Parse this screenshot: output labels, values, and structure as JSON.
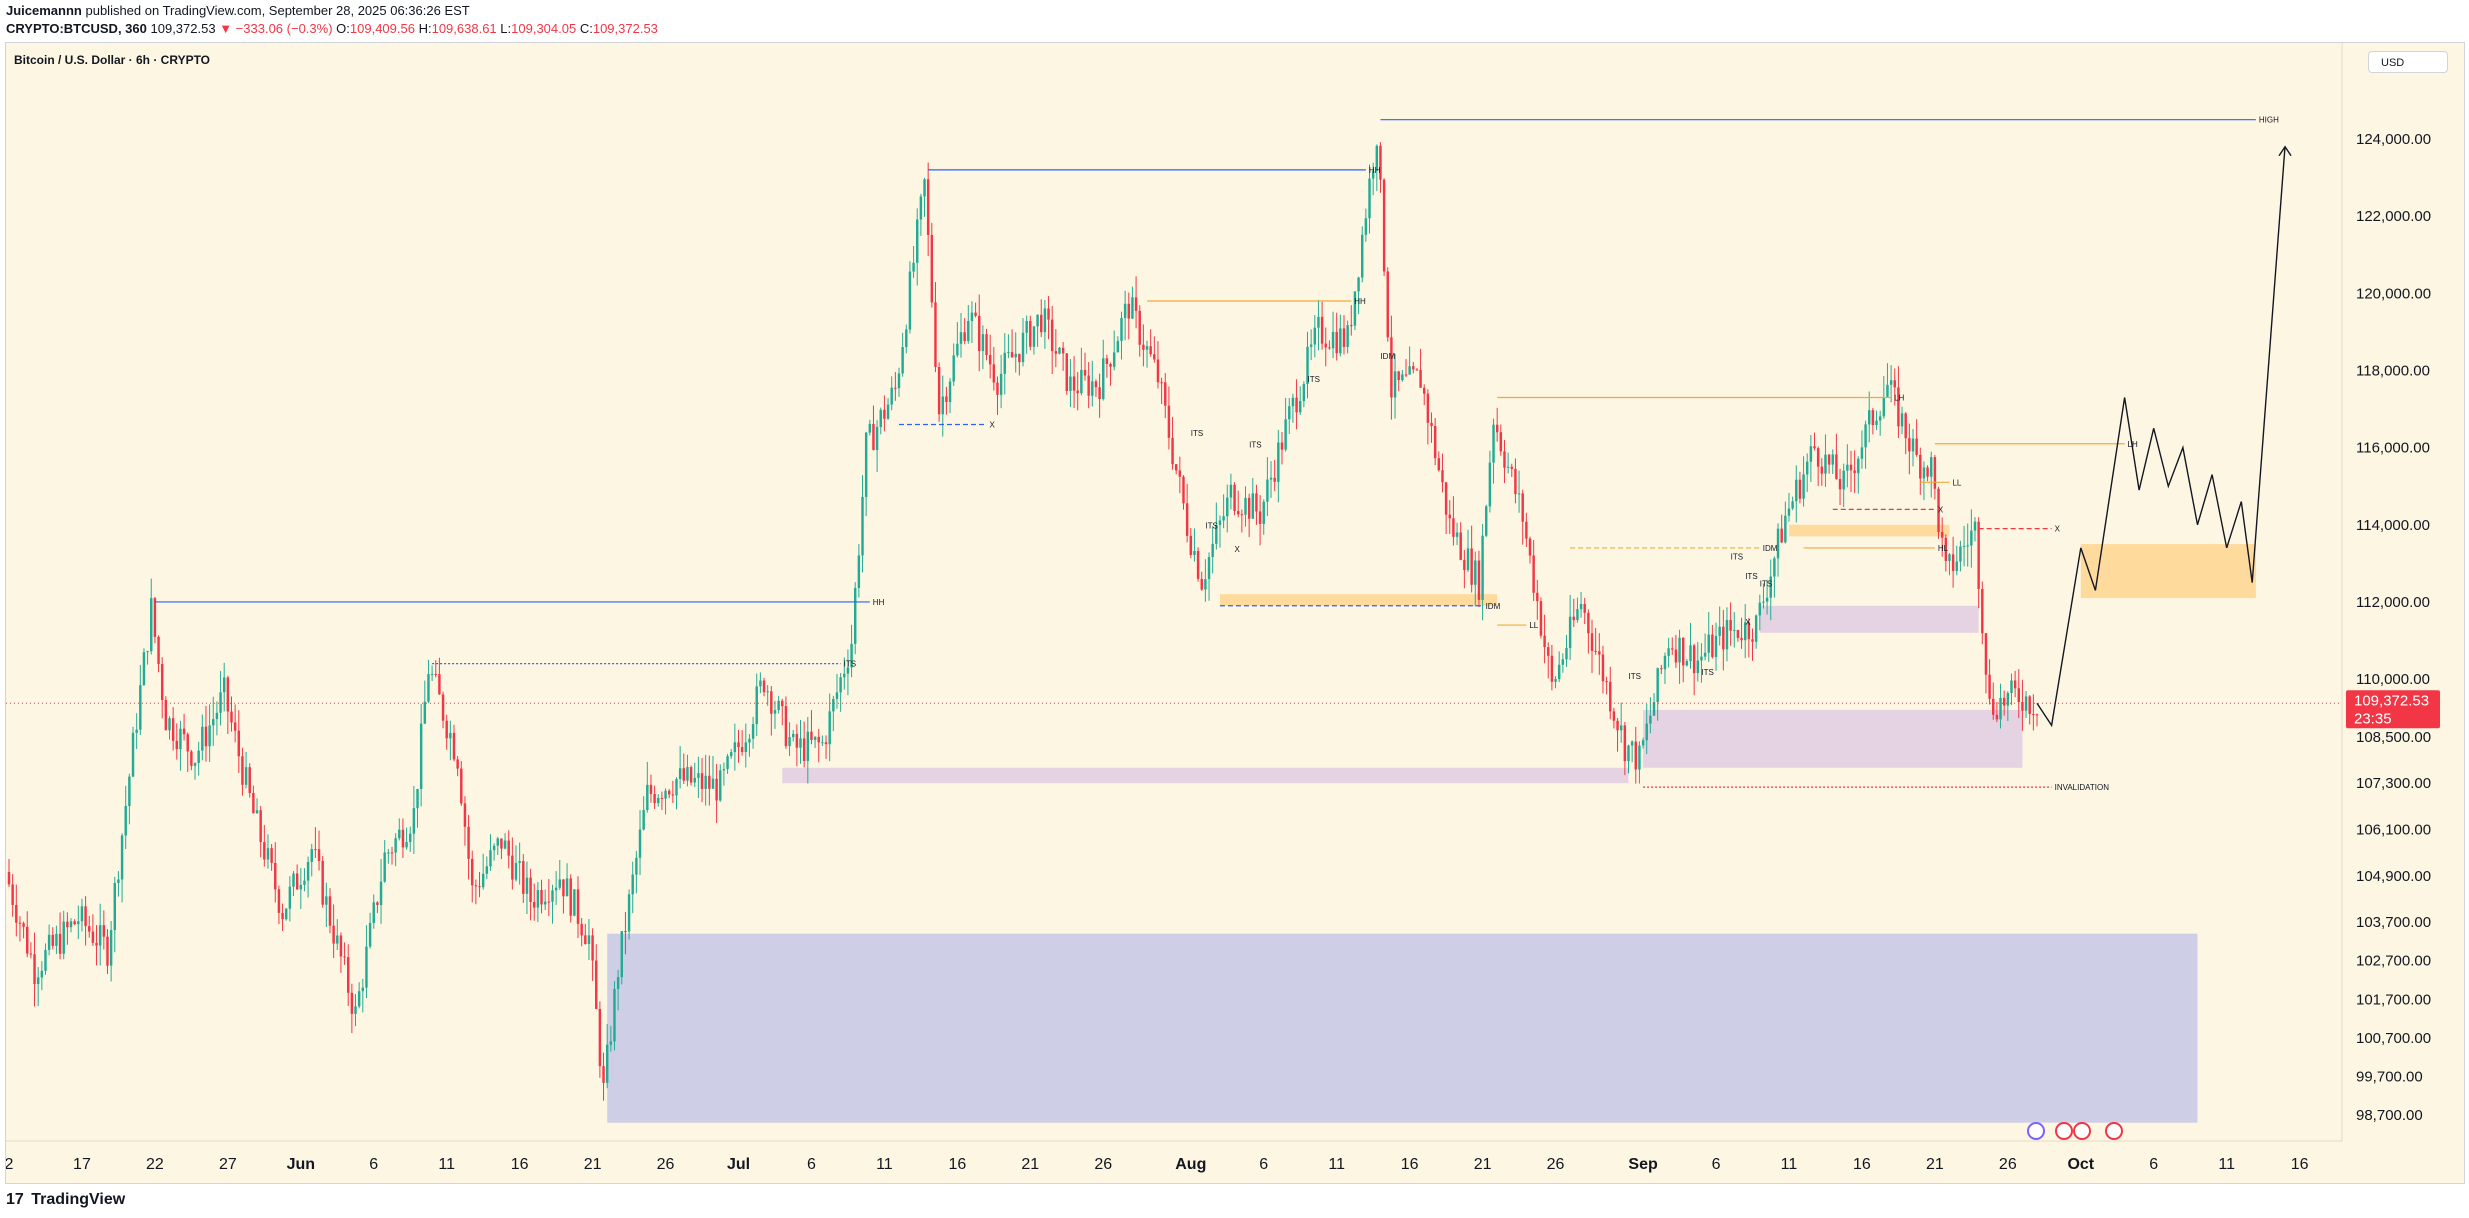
{
  "header": {
    "publisher": "Juicemannn",
    "published_text": "published on TradingView.com, September 28, 2025 06:36:26 EST",
    "symbol": "CRYPTO:BTCUSD, 360",
    "last": "109,372.53",
    "change": "▼ −333.06 (−0.3%)",
    "o_label": "O:",
    "o_value": "109,409.56",
    "h_label": "H:",
    "h_value": "109,638.61",
    "l_label": "L:",
    "l_value": "109,304.05",
    "c_label": "C:",
    "c_value": "109,372.53"
  },
  "currency_button": "USD",
  "footer": {
    "logo_mark": "17",
    "logo_text": "TradingView"
  },
  "colors": {
    "background": "#fdf6e3",
    "up": "#22ab94",
    "down": "#f23645",
    "hh_line": "#2962ff",
    "swing_line": "#f2a93b",
    "demand_zone": "#c5c8e8",
    "ob_zone": "#e1cde3",
    "target_zone": "#ffd591",
    "price_badge": "#f23645"
  },
  "chart_data": {
    "type": "candlestick",
    "title": "Bitcoin / U.S. Dollar · 6h · CRYPTO",
    "ylim": [
      98000,
      125500
    ],
    "y_ticks": [
      {
        "value": 124000,
        "label": "124,000.00"
      },
      {
        "value": 122000,
        "label": "122,000.00"
      },
      {
        "value": 120000,
        "label": "120,000.00"
      },
      {
        "value": 118000,
        "label": "118,000.00"
      },
      {
        "value": 116000,
        "label": "116,000.00"
      },
      {
        "value": 114000,
        "label": "114,000.00"
      },
      {
        "value": 112000,
        "label": "112,000.00"
      },
      {
        "value": 110000,
        "label": "110,000.00"
      },
      {
        "value": 108500,
        "label": "108,500.00"
      },
      {
        "value": 107300,
        "label": "107,300.00"
      },
      {
        "value": 106100,
        "label": "106,100.00"
      },
      {
        "value": 104900,
        "label": "104,900.00"
      },
      {
        "value": 103700,
        "label": "103,700.00"
      },
      {
        "value": 102700,
        "label": "102,700.00"
      },
      {
        "value": 101700,
        "label": "101,700.00"
      },
      {
        "value": 100700,
        "label": "100,700.00"
      },
      {
        "value": 99700,
        "label": "99,700.00"
      },
      {
        "value": 98700,
        "label": "98,700.00"
      }
    ],
    "x_ticks": [
      {
        "date": "2025-05-12",
        "label": "2",
        "bold": false
      },
      {
        "date": "2025-05-17",
        "label": "17",
        "bold": false
      },
      {
        "date": "2025-05-22",
        "label": "22",
        "bold": false
      },
      {
        "date": "2025-05-27",
        "label": "27",
        "bold": false
      },
      {
        "date": "2025-06-01",
        "label": "Jun",
        "bold": true
      },
      {
        "date": "2025-06-06",
        "label": "6",
        "bold": false
      },
      {
        "date": "2025-06-11",
        "label": "11",
        "bold": false
      },
      {
        "date": "2025-06-16",
        "label": "16",
        "bold": false
      },
      {
        "date": "2025-06-21",
        "label": "21",
        "bold": false
      },
      {
        "date": "2025-06-26",
        "label": "26",
        "bold": false
      },
      {
        "date": "2025-07-01",
        "label": "Jul",
        "bold": true
      },
      {
        "date": "2025-07-06",
        "label": "6",
        "bold": false
      },
      {
        "date": "2025-07-11",
        "label": "11",
        "bold": false
      },
      {
        "date": "2025-07-16",
        "label": "16",
        "bold": false
      },
      {
        "date": "2025-07-21",
        "label": "21",
        "bold": false
      },
      {
        "date": "2025-07-26",
        "label": "26",
        "bold": false
      },
      {
        "date": "2025-08-01",
        "label": "Aug",
        "bold": true
      },
      {
        "date": "2025-08-06",
        "label": "6",
        "bold": false
      },
      {
        "date": "2025-08-11",
        "label": "11",
        "bold": false
      },
      {
        "date": "2025-08-16",
        "label": "16",
        "bold": false
      },
      {
        "date": "2025-08-21",
        "label": "21",
        "bold": false
      },
      {
        "date": "2025-08-26",
        "label": "26",
        "bold": false
      },
      {
        "date": "2025-09-01",
        "label": "Sep",
        "bold": true
      },
      {
        "date": "2025-09-06",
        "label": "6",
        "bold": false
      },
      {
        "date": "2025-09-11",
        "label": "11",
        "bold": false
      },
      {
        "date": "2025-09-16",
        "label": "16",
        "bold": false
      },
      {
        "date": "2025-09-21",
        "label": "21",
        "bold": false
      },
      {
        "date": "2025-09-26",
        "label": "26",
        "bold": false
      },
      {
        "date": "2025-10-01",
        "label": "Oct",
        "bold": true
      },
      {
        "date": "2025-10-06",
        "label": "6",
        "bold": false
      },
      {
        "date": "2025-10-11",
        "label": "11",
        "bold": false
      },
      {
        "date": "2025-10-16",
        "label": "16",
        "bold": false
      }
    ],
    "price_path": [
      {
        "date": "2025-05-12",
        "price": 105000
      },
      {
        "date": "2025-05-14",
        "price": 102500
      },
      {
        "date": "2025-05-17",
        "price": 103800
      },
      {
        "date": "2025-05-19",
        "price": 103000
      },
      {
        "date": "2025-05-21",
        "price": 109000
      },
      {
        "date": "2025-05-22",
        "price": 111800
      },
      {
        "date": "2025-05-23",
        "price": 109000
      },
      {
        "date": "2025-05-25",
        "price": 108000
      },
      {
        "date": "2025-05-27",
        "price": 109600
      },
      {
        "date": "2025-05-29",
        "price": 106500
      },
      {
        "date": "2025-05-31",
        "price": 104000
      },
      {
        "date": "2025-06-02",
        "price": 105600
      },
      {
        "date": "2025-06-05",
        "price": 101300
      },
      {
        "date": "2025-06-07",
        "price": 105400
      },
      {
        "date": "2025-06-09",
        "price": 106500
      },
      {
        "date": "2025-06-10",
        "price": 110300
      },
      {
        "date": "2025-06-12",
        "price": 108000
      },
      {
        "date": "2025-06-13",
        "price": 104500
      },
      {
        "date": "2025-06-15",
        "price": 105800
      },
      {
        "date": "2025-06-17",
        "price": 104300
      },
      {
        "date": "2025-06-19",
        "price": 104900
      },
      {
        "date": "2025-06-21",
        "price": 103300
      },
      {
        "date": "2025-06-22",
        "price": 99300
      },
      {
        "date": "2025-06-23",
        "price": 102500
      },
      {
        "date": "2025-06-25",
        "price": 107000
      },
      {
        "date": "2025-06-27",
        "price": 107400
      },
      {
        "date": "2025-06-30",
        "price": 107200
      },
      {
        "date": "2025-07-02",
        "price": 108900
      },
      {
        "date": "2025-07-03",
        "price": 110000
      },
      {
        "date": "2025-07-05",
        "price": 108200
      },
      {
        "date": "2025-07-07",
        "price": 108300
      },
      {
        "date": "2025-07-09",
        "price": 111000
      },
      {
        "date": "2025-07-10",
        "price": 116000
      },
      {
        "date": "2025-07-12",
        "price": 117500
      },
      {
        "date": "2025-07-14",
        "price": 122800
      },
      {
        "date": "2025-07-15",
        "price": 117000
      },
      {
        "date": "2025-07-17",
        "price": 119500
      },
      {
        "date": "2025-07-19",
        "price": 117800
      },
      {
        "date": "2025-07-22",
        "price": 119400
      },
      {
        "date": "2025-07-24",
        "price": 117600
      },
      {
        "date": "2025-07-26",
        "price": 117700
      },
      {
        "date": "2025-07-28",
        "price": 119700
      },
      {
        "date": "2025-07-30",
        "price": 117800
      },
      {
        "date": "2025-08-01",
        "price": 114000
      },
      {
        "date": "2025-08-02",
        "price": 112600
      },
      {
        "date": "2025-08-04",
        "price": 114800
      },
      {
        "date": "2025-08-06",
        "price": 114300
      },
      {
        "date": "2025-08-08",
        "price": 116800
      },
      {
        "date": "2025-08-10",
        "price": 119000
      },
      {
        "date": "2025-08-12",
        "price": 118800
      },
      {
        "date": "2025-08-14",
        "price": 124200
      },
      {
        "date": "2025-08-15",
        "price": 117500
      },
      {
        "date": "2025-08-17",
        "price": 117800
      },
      {
        "date": "2025-08-19",
        "price": 114000
      },
      {
        "date": "2025-08-21",
        "price": 112500
      },
      {
        "date": "2025-08-22",
        "price": 116800
      },
      {
        "date": "2025-08-24",
        "price": 114200
      },
      {
        "date": "2025-08-26",
        "price": 109800
      },
      {
        "date": "2025-08-28",
        "price": 112000
      },
      {
        "date": "2025-08-31",
        "price": 108300
      },
      {
        "date": "2025-09-01",
        "price": 107900
      },
      {
        "date": "2025-09-03",
        "price": 111000
      },
      {
        "date": "2025-09-05",
        "price": 110500
      },
      {
        "date": "2025-09-07",
        "price": 111200
      },
      {
        "date": "2025-09-09",
        "price": 111400
      },
      {
        "date": "2025-09-11",
        "price": 114200
      },
      {
        "date": "2025-09-13",
        "price": 116000
      },
      {
        "date": "2025-09-15",
        "price": 115000
      },
      {
        "date": "2025-09-17",
        "price": 116800
      },
      {
        "date": "2025-09-18",
        "price": 117600
      },
      {
        "date": "2025-09-20",
        "price": 115700
      },
      {
        "date": "2025-09-21",
        "price": 115500
      },
      {
        "date": "2025-09-22",
        "price": 112700
      },
      {
        "date": "2025-09-24",
        "price": 113900
      },
      {
        "date": "2025-09-25",
        "price": 109300
      },
      {
        "date": "2025-09-27",
        "price": 109600
      },
      {
        "date": "2025-09-28",
        "price": 109372.53
      }
    ],
    "projection_path": [
      {
        "date": "2025-09-29",
        "price": 108800
      },
      {
        "date": "2025-10-01",
        "price": 113400
      },
      {
        "date": "2025-10-02",
        "price": 112300
      },
      {
        "date": "2025-10-04",
        "price": 117300
      },
      {
        "date": "2025-10-05",
        "price": 114900
      },
      {
        "date": "2025-10-06",
        "price": 116500
      },
      {
        "date": "2025-10-07",
        "price": 115000
      },
      {
        "date": "2025-10-08",
        "price": 116000
      },
      {
        "date": "2025-10-09",
        "price": 114000
      },
      {
        "date": "2025-10-10",
        "price": 115300
      },
      {
        "date": "2025-10-11",
        "price": 113400
      },
      {
        "date": "2025-10-12",
        "price": 114600
      },
      {
        "date": "2025-10-12T18:00",
        "price": 112500
      },
      {
        "date": "2025-10-15",
        "price": 123800
      }
    ],
    "zones": [
      {
        "name": "demand-zone",
        "x_start": "2025-06-22",
        "x_end": "2025-10-09",
        "y_low": 98500,
        "y_high": 103400,
        "color": "#c5c8e8"
      },
      {
        "name": "ob-zone-july",
        "x_start": "2025-07-04",
        "x_end": "2025-08-31",
        "y_low": 107300,
        "y_high": 107700,
        "color": "#e1cde3"
      },
      {
        "name": "ob-zone-sep",
        "x_start": "2025-09-01",
        "x_end": "2025-09-27",
        "y_low": 107700,
        "y_high": 109200,
        "color": "#e1cde3"
      },
      {
        "name": "ob-zone-sep-upper",
        "x_start": "2025-09-09",
        "x_end": "2025-09-24",
        "y_low": 111200,
        "y_high": 111900,
        "color": "#e1cde3"
      },
      {
        "name": "target-zone",
        "x_start": "2025-10-01",
        "x_end": "2025-10-13",
        "y_low": 112100,
        "y_high": 113500,
        "color": "#ffd591"
      },
      {
        "name": "idm-zone-aug",
        "x_start": "2025-08-03",
        "x_end": "2025-08-22",
        "y_low": 111900,
        "y_high": 112200,
        "color": "#ffd591"
      },
      {
        "name": "sep-small-zone",
        "x_start": "2025-09-11",
        "x_end": "2025-09-22",
        "y_low": 113700,
        "y_high": 114000,
        "color": "#ffd591"
      }
    ],
    "levels": [
      {
        "name": "hh-may",
        "x_start": "2025-05-22",
        "x_end": "2025-07-10",
        "y": 112000,
        "color": "#2962ff",
        "style": "solid",
        "label": "HH"
      },
      {
        "name": "hh-july",
        "x_start": "2025-07-14",
        "x_end": "2025-08-13",
        "y": 123200,
        "color": "#2962ff",
        "style": "solid",
        "label": "HH"
      },
      {
        "name": "high",
        "x_start": "2025-08-14",
        "x_end": "2025-10-13",
        "y": 124500,
        "color": "#2962ff",
        "style": "solid",
        "label": "HIGH"
      },
      {
        "name": "hh-aug",
        "x_start": "2025-07-29",
        "x_end": "2025-08-12",
        "y": 119800,
        "color": "#f2a93b",
        "style": "solid",
        "label": "HH"
      },
      {
        "name": "sep-lh-level",
        "x_start": "2025-08-22",
        "x_end": "2025-09-18",
        "y": 117300,
        "color": "#f2a93b",
        "style": "solid",
        "label": "LH"
      },
      {
        "name": "lh-right",
        "x_start": "2025-09-21",
        "x_end": "2025-10-04",
        "y": 116100,
        "color": "#f2a93b",
        "style": "solid",
        "label": "LH"
      },
      {
        "name": "its-june",
        "x_start": "2025-06-10",
        "x_end": "2025-07-08",
        "y": 110400,
        "color": "#2962ff",
        "style": "dotted",
        "label": "ITS"
      },
      {
        "name": "invalidation",
        "x_start": "2025-09-01",
        "x_end": "2025-09-29",
        "y": 107200,
        "color": "#f23645",
        "style": "dotted",
        "label": "INVALIDATION"
      },
      {
        "name": "idm-sep",
        "x_start": "2025-08-27",
        "x_end": "2025-09-09",
        "y": 113400,
        "color": "#f2a93b",
        "style": "dashed",
        "label": "IDM"
      },
      {
        "name": "idm-aug",
        "x_start": "2025-08-03",
        "x_end": "2025-08-21",
        "y": 111900,
        "color": "#2962ff",
        "style": "dashed",
        "label": "IDM"
      },
      {
        "name": "hl-sep",
        "x_start": "2025-09-12",
        "x_end": "2025-09-21",
        "y": 113400,
        "color": "#f2a93b",
        "style": "solid",
        "label": "HL"
      },
      {
        "name": "x-sep",
        "x_start": "2025-09-14",
        "x_end": "2025-09-21",
        "y": 114400,
        "color": "#f23645",
        "style": "dashed",
        "label": "X"
      },
      {
        "name": "x-sep-right",
        "x_start": "2025-09-24",
        "x_end": "2025-09-29",
        "y": 113900,
        "color": "#f23645",
        "style": "dashed",
        "label": "X"
      },
      {
        "name": "x-july",
        "x_start": "2025-07-12",
        "x_end": "2025-07-18",
        "y": 116600,
        "color": "#2962ff",
        "style": "dashed",
        "label": "X"
      },
      {
        "name": "ll-aug",
        "x_start": "2025-08-22",
        "x_end": "2025-08-24",
        "y": 111400,
        "color": "#f2a93b",
        "style": "solid",
        "label": "LL"
      },
      {
        "name": "ll-sep",
        "x_start": "2025-09-20",
        "x_end": "2025-09-22",
        "y": 115100,
        "color": "#f2a93b",
        "style": "solid",
        "label": "LL"
      }
    ],
    "tags": [
      {
        "date": "2025-08-14",
        "price": 118300,
        "text": "IDM"
      },
      {
        "date": "2025-08-09",
        "price": 117700,
        "text": "ITS"
      },
      {
        "date": "2025-08-01",
        "price": 116300,
        "text": "ITS"
      },
      {
        "date": "2025-08-05",
        "price": 116000,
        "text": "ITS"
      },
      {
        "date": "2025-08-02",
        "price": 113900,
        "text": "ITS"
      },
      {
        "date": "2025-08-04",
        "price": 113300,
        "text": "X"
      },
      {
        "date": "2025-09-07",
        "price": 113100,
        "text": "ITS"
      },
      {
        "date": "2025-09-08",
        "price": 112600,
        "text": "ITS"
      },
      {
        "date": "2025-09-08",
        "price": 111400,
        "text": "X"
      },
      {
        "date": "2025-08-31",
        "price": 110000,
        "text": "ITS"
      },
      {
        "date": "2025-09-05",
        "price": 110100,
        "text": "ITS"
      },
      {
        "date": "2025-09-09",
        "price": 112400,
        "text": "ITS"
      }
    ],
    "current_price_label": "109,372.53",
    "countdown": "23:35",
    "current_price": 109372.53
  }
}
